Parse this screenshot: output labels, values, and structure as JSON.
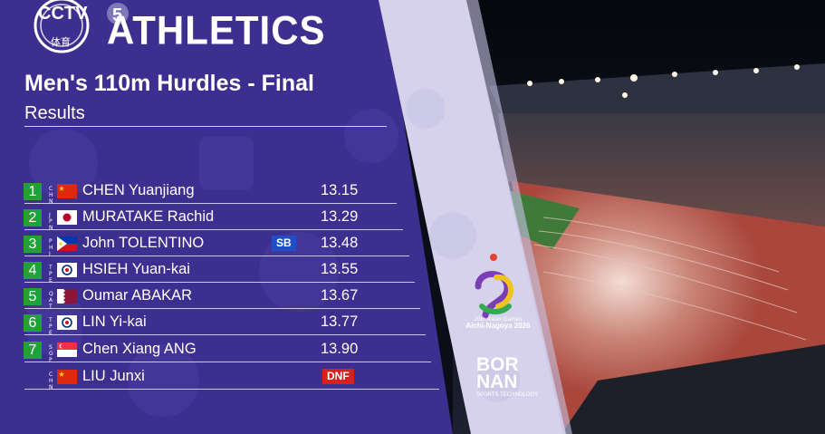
{
  "broadcaster": {
    "name": "CCTV",
    "channel": "5",
    "sub": "体育"
  },
  "sport_title": "ATHLETICS",
  "event_title": "Men's 110m Hurdles - Final",
  "phase": "Results",
  "results": [
    {
      "rank": "1",
      "country": "CHN",
      "name": "CHEN Yuanjiang",
      "mark": "",
      "time": "13.15"
    },
    {
      "rank": "2",
      "country": "JPN",
      "name": "MURATAKE Rachid",
      "mark": "",
      "time": "13.29"
    },
    {
      "rank": "3",
      "country": "PHI",
      "name": "John TOLENTINO",
      "mark": "SB",
      "time": "13.48"
    },
    {
      "rank": "4",
      "country": "TPE",
      "name": "HSIEH Yuan-kai",
      "mark": "",
      "time": "13.55"
    },
    {
      "rank": "5",
      "country": "QAT",
      "name": "Oumar ABAKAR",
      "mark": "",
      "time": "13.67"
    },
    {
      "rank": "6",
      "country": "TPE",
      "name": "LIN Yi-kai",
      "mark": "",
      "time": "13.77"
    },
    {
      "rank": "7",
      "country": "SGP",
      "name": "Chen Xiang ANG",
      "mark": "",
      "time": "13.90"
    },
    {
      "rank": "",
      "country": "CHN",
      "name": "LIU Junxi",
      "mark": "DNF",
      "time": ""
    }
  ],
  "games": {
    "line1": "20th Asian Games",
    "line2": "Aichi-Nagoya 2026"
  },
  "timing": {
    "line1": "BOR",
    "line2": "NAN",
    "tagline": "SPORTS TECHNOLOGY"
  },
  "colors": {
    "panel": "#3d2f8f",
    "rank_bg": "#21a236",
    "sb_bg": "#1f4fc7",
    "dnf_bg": "#d7211e",
    "band": "#d6d2ec"
  }
}
